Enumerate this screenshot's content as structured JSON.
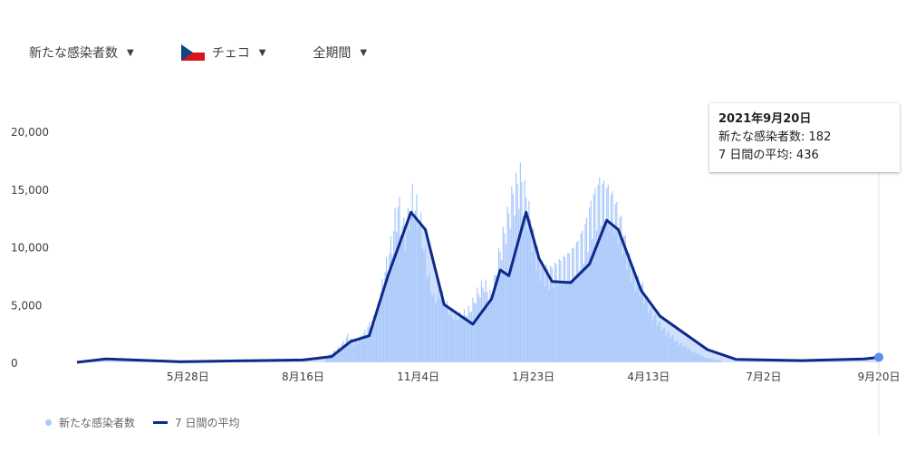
{
  "filters": {
    "metric": "新たな感染者数",
    "country": "チェコ",
    "period": "全期間"
  },
  "tooltip": {
    "date": "2021年9月20日",
    "line1_label": "新たな感染者数",
    "line1_value": "182",
    "line2_label": "7 日間の平均",
    "line2_value": "436"
  },
  "legend": {
    "daily": "新たな感染者数",
    "avg": "7 日間の平均"
  },
  "colors": {
    "bars": "#a8c7fa",
    "avg_line": "#0d2a8a",
    "highlight": "#5b8def"
  },
  "chart_data": {
    "type": "bar+line",
    "xlim": [
      "2020-03-12",
      "2021-09-20"
    ],
    "ylim": [
      0,
      20000
    ],
    "y_ticks": [
      0,
      5000,
      10000,
      15000,
      20000
    ],
    "y_tick_labels": [
      "0",
      "5,000",
      "10,000",
      "15,000",
      "20,000"
    ],
    "x_ticks": [
      "2020-05-28",
      "2020-08-16",
      "2020-11-04",
      "2021-01-23",
      "2021-04-13",
      "2021-07-02",
      "2021-09-20"
    ],
    "x_tick_labels": [
      "5月28日",
      "8月16日",
      "11月4日",
      "1月23日",
      "4月13日",
      "7月2日",
      "9月20日"
    ],
    "grid": false,
    "legend_position": "bottom-left",
    "series": [
      {
        "name": "新たな感染者数",
        "type": "bar",
        "points": [
          [
            "2020-09-01",
            500
          ],
          [
            "2020-09-06",
            1000
          ],
          [
            "2020-09-11",
            1500
          ],
          [
            "2020-09-16",
            2500
          ],
          [
            "2020-09-21",
            1800
          ],
          [
            "2020-09-26",
            2500
          ],
          [
            "2020-10-01",
            3500
          ],
          [
            "2020-10-06",
            4500
          ],
          [
            "2020-10-11",
            8000
          ],
          [
            "2020-10-16",
            11000
          ],
          [
            "2020-10-21",
            15000
          ],
          [
            "2020-10-26",
            12000
          ],
          [
            "2020-10-31",
            15500
          ],
          [
            "2020-11-05",
            14000
          ],
          [
            "2020-11-10",
            9000
          ],
          [
            "2020-11-15",
            6000
          ],
          [
            "2020-11-20",
            6500
          ],
          [
            "2020-11-25",
            5000
          ],
          [
            "2020-11-30",
            4200
          ],
          [
            "2020-12-05",
            4500
          ],
          [
            "2020-12-10",
            5000
          ],
          [
            "2020-12-15",
            6500
          ],
          [
            "2020-12-20",
            7500
          ],
          [
            "2020-12-25",
            6000
          ],
          [
            "2020-12-30",
            10000
          ],
          [
            "2021-01-04",
            13000
          ],
          [
            "2021-01-09",
            16000
          ],
          [
            "2021-01-14",
            17500
          ],
          [
            "2021-01-19",
            15000
          ],
          [
            "2021-01-24",
            11000
          ],
          [
            "2021-01-29",
            9000
          ],
          [
            "2021-02-03",
            8500
          ],
          [
            "2021-02-08",
            9000
          ],
          [
            "2021-02-13",
            9500
          ],
          [
            "2021-02-18",
            10000
          ],
          [
            "2021-02-23",
            11000
          ],
          [
            "2021-02-28",
            12500
          ],
          [
            "2021-03-05",
            15000
          ],
          [
            "2021-03-10",
            16500
          ],
          [
            "2021-03-15",
            16000
          ],
          [
            "2021-03-20",
            15000
          ],
          [
            "2021-03-25",
            13000
          ],
          [
            "2021-03-30",
            10000
          ],
          [
            "2021-04-04",
            8000
          ],
          [
            "2021-04-09",
            7000
          ],
          [
            "2021-04-14",
            5000
          ],
          [
            "2021-04-19",
            4000
          ],
          [
            "2021-04-24",
            3000
          ],
          [
            "2021-04-29",
            2500
          ],
          [
            "2021-05-04",
            1800
          ],
          [
            "2021-05-09",
            1500
          ],
          [
            "2021-05-14",
            1000
          ],
          [
            "2021-05-19",
            700
          ],
          [
            "2021-05-24",
            400
          ],
          [
            "2021-05-29",
            250
          ],
          [
            "2021-06-03",
            150
          ],
          [
            "2021-09-20",
            182
          ]
        ]
      },
      {
        "name": "7 日間の平均",
        "type": "line",
        "points": [
          [
            "2020-03-12",
            0
          ],
          [
            "2020-04-01",
            300
          ],
          [
            "2020-05-23",
            50
          ],
          [
            "2020-07-14",
            150
          ],
          [
            "2020-08-16",
            200
          ],
          [
            "2020-09-05",
            500
          ],
          [
            "2020-09-18",
            1800
          ],
          [
            "2020-10-01",
            2300
          ],
          [
            "2020-10-14",
            7500
          ],
          [
            "2020-10-30",
            13000
          ],
          [
            "2020-11-09",
            11500
          ],
          [
            "2020-11-22",
            5000
          ],
          [
            "2020-12-12",
            3300
          ],
          [
            "2020-12-25",
            5500
          ],
          [
            "2020-12-31",
            8000
          ],
          [
            "2021-01-06",
            7500
          ],
          [
            "2021-01-18",
            13000
          ],
          [
            "2021-01-27",
            9000
          ],
          [
            "2021-02-05",
            7000
          ],
          [
            "2021-02-18",
            6900
          ],
          [
            "2021-03-03",
            8500
          ],
          [
            "2021-03-15",
            12300
          ],
          [
            "2021-03-23",
            11500
          ],
          [
            "2021-04-08",
            6200
          ],
          [
            "2021-04-21",
            4000
          ],
          [
            "2021-05-08",
            2500
          ],
          [
            "2021-05-24",
            1100
          ],
          [
            "2021-06-13",
            250
          ],
          [
            "2021-07-29",
            150
          ],
          [
            "2021-09-10",
            300
          ],
          [
            "2021-09-20",
            436
          ]
        ]
      }
    ]
  }
}
